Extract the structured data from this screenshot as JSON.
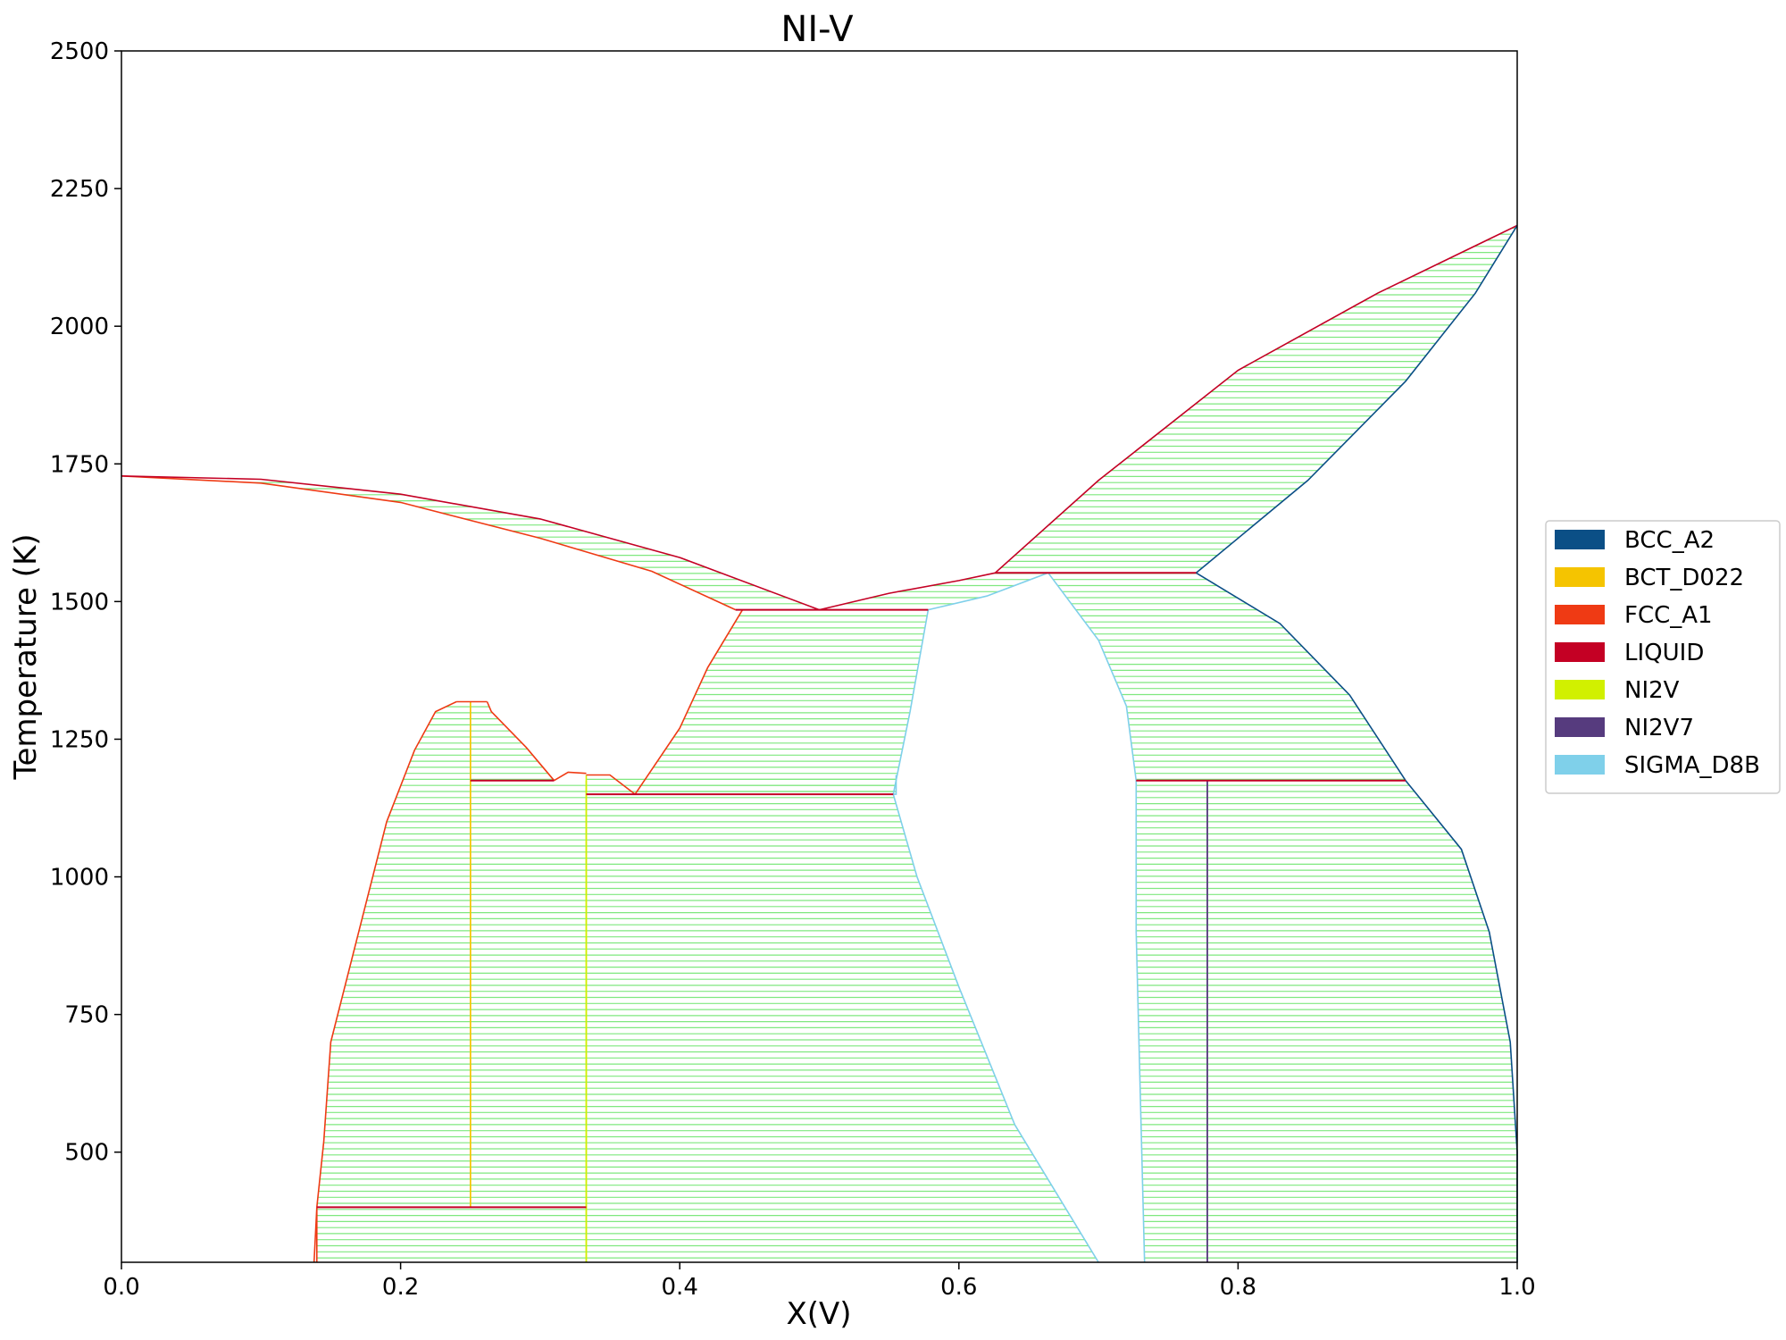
{
  "chart_data": {
    "type": "line",
    "title": "NI-V",
    "xlabel": "X(V)",
    "ylabel": "Temperature (K)",
    "xlim": [
      0.0,
      1.0
    ],
    "ylim": [
      300,
      2500
    ],
    "x_ticks": [
      "0.0",
      "0.2",
      "0.4",
      "0.6",
      "0.8",
      "1.0"
    ],
    "y_ticks": [
      "500",
      "750",
      "1000",
      "1250",
      "1500",
      "1750",
      "2000",
      "2250",
      "2500"
    ],
    "legend_position": "right",
    "legend": [
      {
        "name": "BCC_A2",
        "color": "#0b4f86"
      },
      {
        "name": "BCT_D022",
        "color": "#f5c400"
      },
      {
        "name": "FCC_A1",
        "color": "#ef3a14"
      },
      {
        "name": "LIQUID",
        "color": "#c40024"
      },
      {
        "name": "NI2V",
        "color": "#d1f000"
      },
      {
        "name": "NI2V7",
        "color": "#563b7e"
      },
      {
        "name": "SIGMA_D8B",
        "color": "#7fd0ea"
      }
    ],
    "tie_line_color": "#7fe87f",
    "regions": [
      {
        "left": [
          [
            0.0,
            1728
          ],
          [
            0.1,
            1715
          ],
          [
            0.2,
            1680
          ],
          [
            0.3,
            1615
          ],
          [
            0.38,
            1555
          ],
          [
            0.44,
            1485
          ]
        ],
        "right": [
          [
            0.0,
            1728
          ],
          [
            0.1,
            1722
          ],
          [
            0.2,
            1695
          ],
          [
            0.3,
            1650
          ],
          [
            0.4,
            1580
          ],
          [
            0.5,
            1485
          ]
        ],
        "lc": "#ef3a14",
        "rc": "#c40024"
      },
      {
        "left": [
          [
            0.14,
            400
          ],
          [
            0.145,
            520
          ],
          [
            0.15,
            700
          ],
          [
            0.17,
            900
          ],
          [
            0.19,
            1100
          ],
          [
            0.21,
            1230
          ],
          [
            0.225,
            1300
          ],
          [
            0.24,
            1318
          ]
        ],
        "right": [
          [
            0.25,
            400
          ],
          [
            0.25,
            1318
          ]
        ],
        "lc": "#ef3a14",
        "rc": "#f5c400"
      },
      {
        "left": [
          [
            0.25,
            1175
          ],
          [
            0.25,
            1318
          ]
        ],
        "right": [
          [
            0.31,
            1175
          ],
          [
            0.29,
            1235
          ],
          [
            0.265,
            1300
          ],
          [
            0.262,
            1318
          ]
        ],
        "lc": "#f5c400",
        "rc": "#ef3a14"
      },
      {
        "left": [
          [
            0.25,
            400
          ],
          [
            0.25,
            1175
          ]
        ],
        "right": [
          [
            0.333,
            400
          ],
          [
            0.333,
            1175
          ]
        ],
        "lc": "#f5c400",
        "rc": "#d1f000"
      },
      {
        "left": [
          [
            0.14,
            300
          ],
          [
            0.14,
            400
          ]
        ],
        "right": [
          [
            0.333,
            300
          ],
          [
            0.333,
            400
          ]
        ],
        "lc": "#ef3a14",
        "rc": "#d1f000"
      },
      {
        "left": [
          [
            0.333,
            300
          ],
          [
            0.333,
            1150
          ],
          [
            0.333,
            1185
          ]
        ],
        "right": [
          [
            0.7,
            300
          ],
          [
            0.64,
            550
          ],
          [
            0.6,
            800
          ],
          [
            0.57,
            1000
          ],
          [
            0.553,
            1150
          ],
          [
            0.555,
            1150
          ],
          [
            0.555,
            1185
          ]
        ],
        "lc": "#d1f000",
        "rc": "#7fd0ea"
      },
      {
        "left": [
          [
            0.368,
            1150
          ],
          [
            0.4,
            1270
          ],
          [
            0.42,
            1380
          ],
          [
            0.445,
            1485
          ]
        ],
        "right": [
          [
            0.553,
            1150
          ],
          [
            0.565,
            1300
          ],
          [
            0.578,
            1485
          ]
        ],
        "lc": "#ef3a14",
        "rc": "#7fd0ea"
      },
      {
        "left": [
          [
            0.5,
            1485
          ],
          [
            0.55,
            1515
          ],
          [
            0.6,
            1538
          ],
          [
            0.626,
            1552
          ]
        ],
        "right": [
          [
            0.578,
            1485
          ],
          [
            0.62,
            1510
          ],
          [
            0.664,
            1552
          ]
        ],
        "lc": "#c40024",
        "rc": "#7fd0ea"
      },
      {
        "left": [
          [
            0.626,
            1552
          ],
          [
            0.7,
            1720
          ],
          [
            0.8,
            1920
          ],
          [
            0.9,
            2060
          ],
          [
            1.0,
            2183
          ]
        ],
        "right": [
          [
            0.77,
            1552
          ],
          [
            0.85,
            1720
          ],
          [
            0.92,
            1900
          ],
          [
            0.97,
            2060
          ],
          [
            1.0,
            2183
          ]
        ],
        "lc": "#c40024",
        "rc": "#0b4f86"
      },
      {
        "left": [
          [
            0.664,
            1552
          ],
          [
            0.7,
            1430
          ],
          [
            0.72,
            1310
          ],
          [
            0.727,
            1175
          ]
        ],
        "right": [
          [
            0.77,
            1552
          ],
          [
            0.83,
            1460
          ],
          [
            0.88,
            1330
          ],
          [
            0.92,
            1175
          ]
        ],
        "lc": "#7fd0ea",
        "rc": "#0b4f86"
      },
      {
        "left": [
          [
            0.733,
            300
          ],
          [
            0.73,
            600
          ],
          [
            0.727,
            900
          ],
          [
            0.727,
            1175
          ]
        ],
        "right": [
          [
            0.778,
            300
          ],
          [
            0.778,
            1175
          ]
        ],
        "lc": "#7fd0ea",
        "rc": "#563b7e"
      },
      {
        "left": [
          [
            0.778,
            300
          ],
          [
            0.778,
            1175
          ]
        ],
        "right": [
          [
            1.0,
            300
          ],
          [
            1.0,
            500
          ],
          [
            0.995,
            700
          ],
          [
            0.98,
            900
          ],
          [
            0.96,
            1050
          ],
          [
            0.92,
            1175
          ]
        ],
        "lc": "#563b7e",
        "rc": "#0b4f86"
      }
    ],
    "invariant_lines": [
      {
        "x": [
          0.14,
          0.333
        ],
        "y": 400,
        "color": "#c40024"
      },
      {
        "x": [
          0.25,
          0.31
        ],
        "y": 1175,
        "color": "#c40024"
      },
      {
        "x": [
          0.333,
          0.553
        ],
        "y": 1150,
        "color": "#c40024"
      },
      {
        "x": [
          0.44,
          0.578
        ],
        "y": 1485,
        "color": "#c40024"
      },
      {
        "x": [
          0.626,
          0.77
        ],
        "y": 1552,
        "color": "#c40024"
      },
      {
        "x": [
          0.727,
          0.92
        ],
        "y": 1175,
        "color": "#c40024"
      }
    ],
    "extra_boundaries": [
      {
        "points": [
          [
            0.31,
            1175
          ],
          [
            0.32,
            1190
          ],
          [
            0.333,
            1188
          ]
        ],
        "color": "#ef3a14"
      },
      {
        "points": [
          [
            0.333,
            1185
          ],
          [
            0.35,
            1185
          ],
          [
            0.368,
            1150
          ]
        ],
        "color": "#ef3a14"
      },
      {
        "points": [
          [
            0.24,
            1318
          ],
          [
            0.262,
            1318
          ]
        ],
        "color": "#ef3a14"
      },
      {
        "points": [
          [
            0.14,
            400
          ],
          [
            0.138,
            300
          ]
        ],
        "color": "#ef3a14"
      }
    ]
  }
}
